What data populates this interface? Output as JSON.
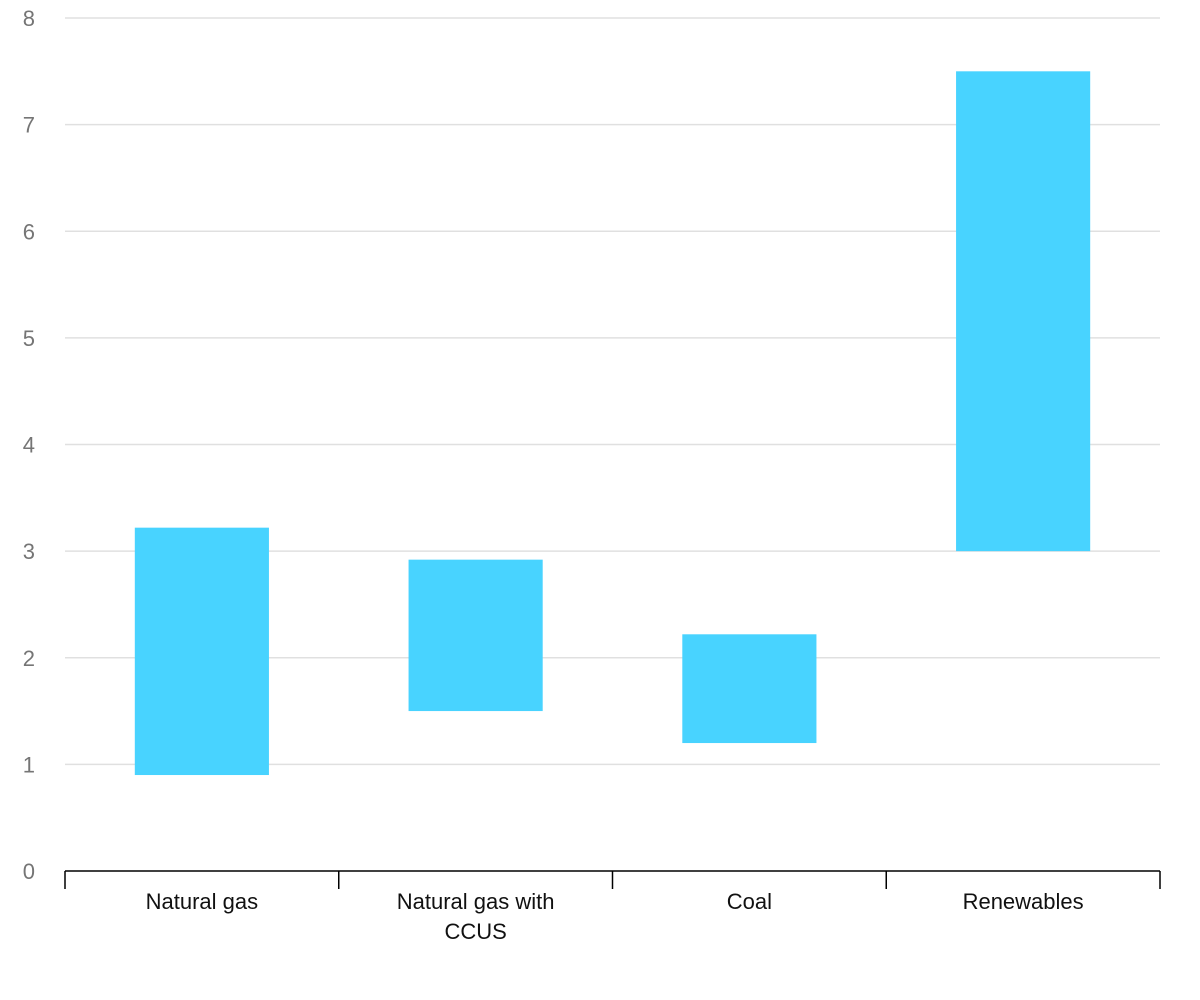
{
  "chart_data": {
    "type": "bar",
    "categories": [
      [
        "Natural gas"
      ],
      [
        "Natural gas with",
        "CCUS"
      ],
      [
        "Coal"
      ],
      [
        "Renewables"
      ]
    ],
    "ranges": [
      [
        0.9,
        3.22
      ],
      [
        1.5,
        2.92
      ],
      [
        1.2,
        2.22
      ],
      [
        3.0,
        7.5
      ]
    ],
    "title": "",
    "xlabel": "",
    "ylabel": "",
    "ylim": [
      0,
      8
    ],
    "yticks": [
      "0",
      "1",
      "2",
      "3",
      "4",
      "5",
      "6",
      "7",
      "8"
    ],
    "grid": true,
    "legend": "none",
    "bar_color": "#48D3FF"
  }
}
